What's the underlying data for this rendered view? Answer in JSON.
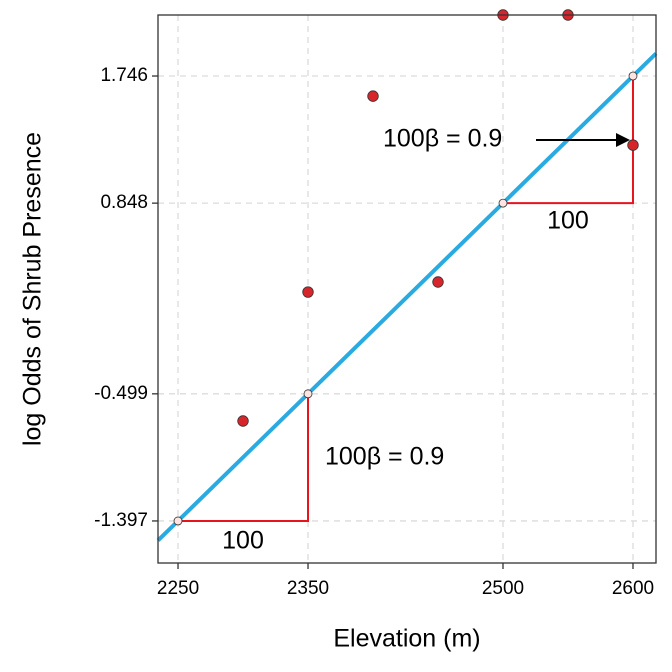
{
  "chart_data": {
    "type": "scatter",
    "x_label": "Elevation (m)",
    "y_label": "log Odds of Shrub Presence",
    "xlim": [
      2234.6,
      2617.7
    ],
    "ylim": [
      -1.694,
      2.177
    ],
    "xticks": [
      2250,
      2350,
      2500,
      2600
    ],
    "yticks": [
      {
        "value": -1.397,
        "label": "-1.397"
      },
      {
        "value": -0.499,
        "label": "-0.499"
      },
      {
        "value": 0.848,
        "label": "0.848"
      },
      {
        "value": 1.746,
        "label": "1.746"
      }
    ],
    "grid": true,
    "series": [
      {
        "kind": "points",
        "color": "#d7262b",
        "x": [
          2300,
          2350,
          2400,
          2450,
          2500,
          2550,
          2600
        ],
        "values": [
          -0.691,
          0.22,
          1.604,
          0.291,
          2.177,
          2.177,
          1.258
        ]
      },
      {
        "kind": "line",
        "color": "#29abe2",
        "x": [
          2234.6,
          2617.7
        ],
        "values": [
          -1.535,
          1.905
        ]
      },
      {
        "kind": "highlight",
        "color": "#ffe4e1",
        "x": [
          2250,
          2350,
          2500,
          2600
        ],
        "values": [
          -1.397,
          -0.499,
          0.848,
          1.746
        ]
      }
    ],
    "annotations": [
      "100",
      "100β = 0.9",
      "100",
      "100β = 0.9"
    ]
  }
}
